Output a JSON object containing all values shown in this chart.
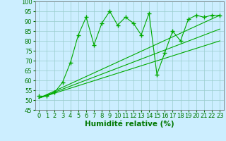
{
  "title": "",
  "xlabel": "Humidité relative (%)",
  "ylabel": "",
  "bg_color": "#cceeff",
  "grid_color": "#99cccc",
  "line_color": "#00aa00",
  "marker_color": "#00aa00",
  "xlim": [
    -0.5,
    23.5
  ],
  "ylim": [
    45,
    100
  ],
  "yticks": [
    45,
    50,
    55,
    60,
    65,
    70,
    75,
    80,
    85,
    90,
    95,
    100
  ],
  "xticks": [
    0,
    1,
    2,
    3,
    4,
    5,
    6,
    7,
    8,
    9,
    10,
    11,
    12,
    13,
    14,
    15,
    16,
    17,
    18,
    19,
    20,
    21,
    22,
    23
  ],
  "main_series": {
    "x": [
      0,
      1,
      2,
      3,
      4,
      5,
      6,
      7,
      8,
      9,
      10,
      11,
      12,
      13,
      14,
      15,
      16,
      17,
      18,
      19,
      20,
      21,
      22,
      23
    ],
    "y": [
      52,
      52,
      54,
      59,
      69,
      83,
      92,
      78,
      89,
      95,
      88,
      92,
      89,
      83,
      94,
      63,
      74,
      85,
      80,
      91,
      93,
      92,
      93,
      93
    ]
  },
  "regression_lines": [
    {
      "x": [
        0,
        23
      ],
      "y": [
        51,
        93
      ]
    },
    {
      "x": [
        0,
        23
      ],
      "y": [
        51,
        80
      ]
    },
    {
      "x": [
        0,
        23
      ],
      "y": [
        51,
        86
      ]
    }
  ],
  "xlabel_color": "#007700",
  "xlabel_fontsize": 7.5,
  "tick_fontsize": 6.0,
  "tick_color": "#007700"
}
